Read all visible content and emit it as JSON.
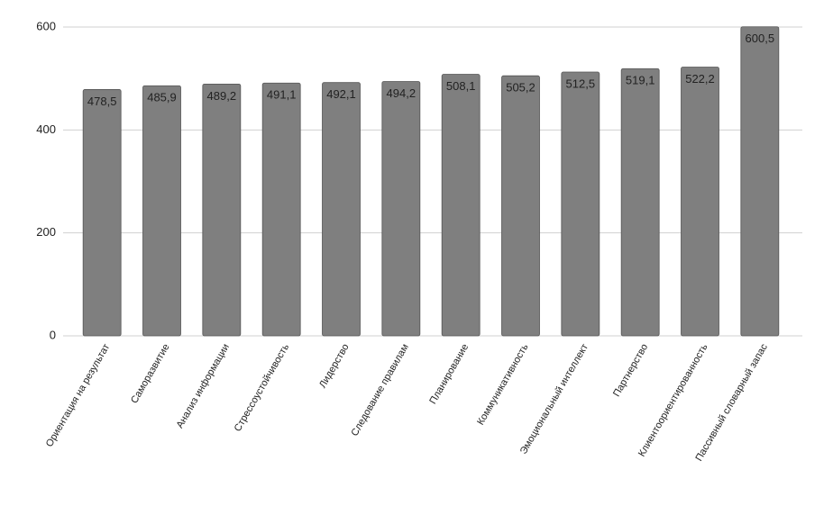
{
  "chart_data": {
    "type": "bar",
    "categories": [
      "Ориентация на результат",
      "Саморазвитие",
      "Анализ информации",
      "Стрессоустойчивость",
      "Лидерство",
      "Следование правилам",
      "Планирование",
      "Коммуникативность",
      "Эмоциональный интеллект",
      "Партнерство",
      "Клиентоориентированность",
      "Пассивный словарный запас"
    ],
    "values": [
      478.5,
      485.9,
      489.2,
      491.1,
      492.1,
      494.2,
      508.1,
      505.2,
      512.5,
      519.1,
      522.2,
      600.5
    ],
    "value_labels": [
      "478,5",
      "485,9",
      "489,2",
      "491,1",
      "492,1",
      "494,2",
      "508,1",
      "505,2",
      "512,5",
      "519,1",
      "522,2",
      "600,5"
    ],
    "color": "#7f7f7f",
    "ylim": [
      0,
      600
    ],
    "yticks": [
      0,
      200,
      400,
      600
    ],
    "grid": true
  }
}
